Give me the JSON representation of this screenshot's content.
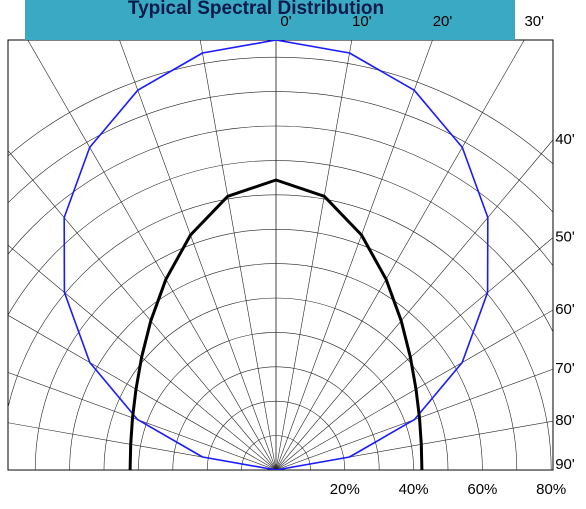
{
  "chart_data": {
    "type": "polar",
    "title": "Typical Spectral Distribution",
    "angles": [
      -90,
      -80,
      -70,
      -60,
      -50,
      -40,
      -30,
      -20,
      -10,
      0,
      10,
      20,
      30,
      40,
      50,
      60,
      70,
      80,
      90
    ],
    "series": [
      {
        "color": "#1a1aff",
        "values": [
          0,
          21.7,
          42.8,
          62.5,
          80.3,
          95.8,
          108.3,
          117.5,
          123.1,
          125,
          123.1,
          117.5,
          108.3,
          95.8,
          80.3,
          62.5,
          42.8,
          21.7,
          0
        ]
      },
      {
        "color": "#000000",
        "values": [
          42.4,
          42.9,
          44.4,
          47.0,
          51.0,
          56.6,
          64.0,
          72.7,
          80.8,
          84.3,
          80.8,
          72.7,
          64.0,
          56.6,
          51.0,
          47.0,
          44.4,
          42.9,
          42.4
        ]
      }
    ],
    "rlim": [
      0,
      125
    ],
    "rgrid": [
      10,
      20,
      30,
      40,
      50,
      60,
      70,
      80,
      90,
      100,
      110,
      120
    ],
    "rticks": [
      {
        "value": 20,
        "label": "20%"
      },
      {
        "value": 40,
        "label": "40%"
      },
      {
        "value": 60,
        "label": "60%"
      },
      {
        "value": 80,
        "label": "80%"
      }
    ],
    "aticks": [
      {
        "value": 0,
        "label": "0'"
      },
      {
        "value": 10,
        "label": "10'"
      },
      {
        "value": 20,
        "label": "20'"
      },
      {
        "value": 30,
        "label": "30'"
      },
      {
        "value": 40,
        "label": "40'"
      },
      {
        "value": 50,
        "label": "50'"
      },
      {
        "value": 60,
        "label": "60'"
      },
      {
        "value": 70,
        "label": "70'"
      },
      {
        "value": 80,
        "label": "80'"
      },
      {
        "value": 90,
        "label": "90'"
      }
    ]
  }
}
